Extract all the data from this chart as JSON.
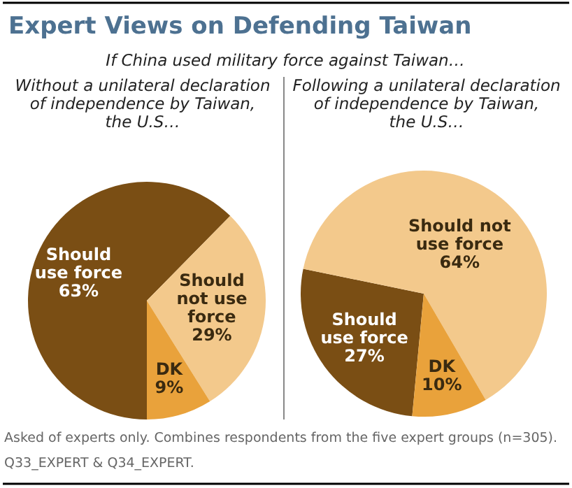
{
  "chart_data": [
    {
      "type": "pie",
      "title": "Expert Views on Defending Taiwan",
      "annotations": [
        "If China used military force against Taiwan…"
      ],
      "subtitle": "Without a unilateral declaration of independence by Taiwan, the U.S…",
      "categories": [
        "Should use force",
        "Should not use force",
        "DK"
      ],
      "values": [
        63,
        29,
        9
      ],
      "value_labels": [
        "63%",
        "29%",
        "9%"
      ],
      "colors": [
        "#7a4e14",
        "#f3c98c",
        "#e9a23b"
      ]
    },
    {
      "type": "pie",
      "subtitle": "Following a unilateral declaration of independence by Taiwan, the U.S…",
      "categories": [
        "Should use force",
        "Should not use force",
        "DK"
      ],
      "values": [
        27,
        64,
        10
      ],
      "value_labels": [
        "27%",
        "64%",
        "10%"
      ],
      "colors": [
        "#7a4e14",
        "#f3c98c",
        "#e9a23b"
      ],
      "annotations": [
        "Asked of experts only. Combines respondents from the five expert groups (n=305).",
        "Q33_EXPERT & Q34_EXPERT."
      ]
    }
  ]
}
